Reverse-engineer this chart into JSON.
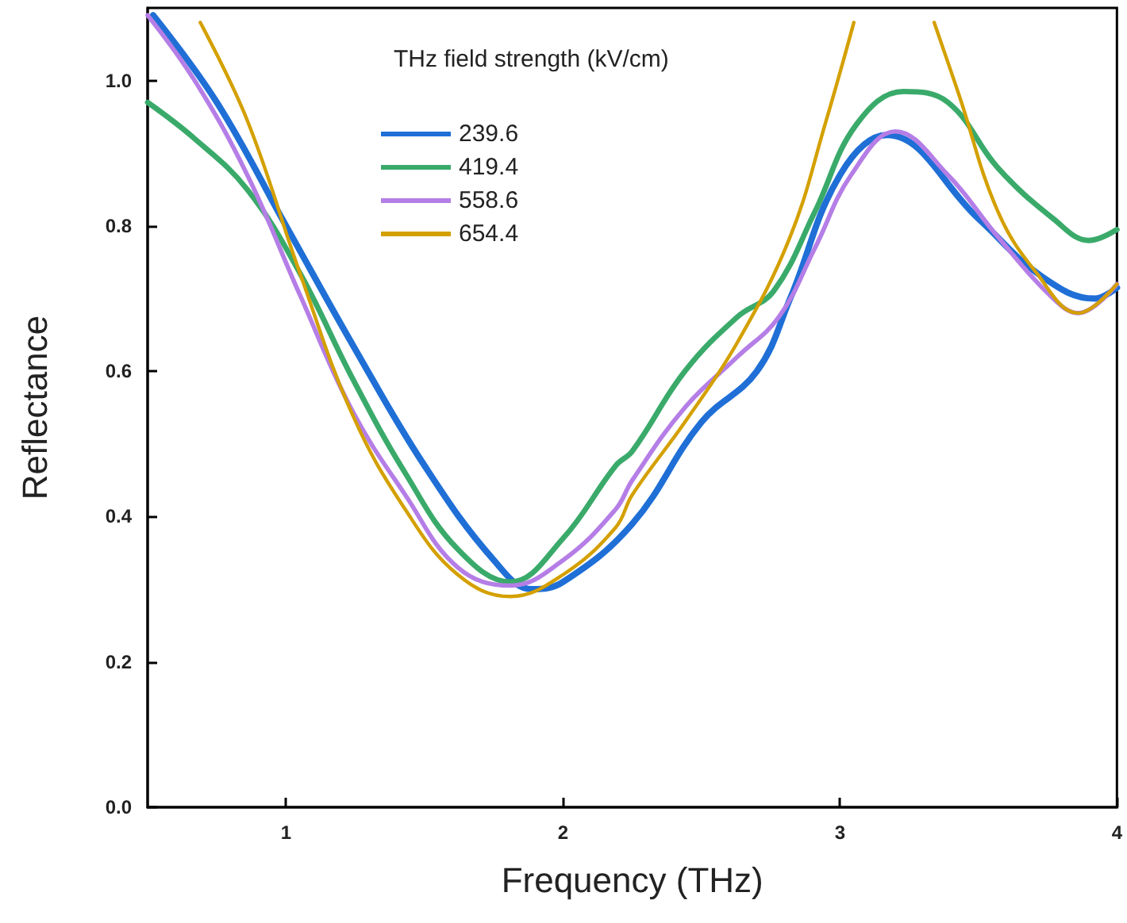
{
  "chart_data": {
    "type": "line",
    "xlabel": "Frequency (THz)",
    "ylabel": "Reflectance",
    "legend_title": "THz field strength (kV/cm)",
    "legend": "top",
    "grid": false,
    "marker": "none",
    "line_style": "solid",
    "xlim": [
      0.5,
      4
    ],
    "xticks": [
      1,
      2,
      3,
      4
    ],
    "ylim": [
      0,
      1.1
    ],
    "yticks": [
      {
        "value": 0,
        "label": "0.0"
      },
      {
        "value": 0.2,
        "label": "0.2"
      },
      {
        "value": 0.4,
        "label": "0.4"
      },
      {
        "value": 0.6,
        "label": "0.6"
      },
      {
        "value": 0.8,
        "label": "0.8"
      },
      {
        "value": 1.0,
        "label": "1.0"
      }
    ],
    "series": [
      {
        "name": "239.6",
        "color": "#1f6fd6",
        "x": [
          0.52,
          0.75,
          1.0,
          1.25,
          1.5,
          1.75,
          1.89,
          2.0,
          2.25,
          2.5,
          2.7,
          2.82,
          3.0,
          3.17,
          3.5,
          3.73,
          3.92,
          4.0
        ],
        "values": [
          1.09,
          0.97,
          0.8,
          0.63,
          0.47,
          0.34,
          0.3,
          0.31,
          0.39,
          0.53,
          0.6,
          0.7,
          0.87,
          0.925,
          0.81,
          0.73,
          0.7,
          0.715
        ]
      },
      {
        "name": "419.4",
        "color": "#3aaa6a",
        "x": [
          0.5,
          0.67,
          0.86,
          1.05,
          1.24,
          1.43,
          1.62,
          1.81,
          2.0,
          2.19,
          2.25,
          2.44,
          2.63,
          2.76,
          2.91,
          3.06,
          3.23,
          3.39,
          3.57,
          3.77,
          3.9,
          4.0
        ],
        "values": [
          0.97,
          0.92,
          0.85,
          0.735,
          0.59,
          0.46,
          0.355,
          0.31,
          0.37,
          0.47,
          0.49,
          0.6,
          0.675,
          0.71,
          0.82,
          0.94,
          0.985,
          0.97,
          0.88,
          0.81,
          0.78,
          0.795
        ]
      },
      {
        "name": "558.6",
        "color": "#b57ee6",
        "x": [
          0.5,
          0.67,
          0.86,
          1.05,
          1.24,
          1.43,
          1.62,
          1.81,
          2.0,
          2.19,
          2.25,
          2.44,
          2.63,
          2.78,
          2.91,
          3.04,
          3.2,
          3.39,
          3.57,
          3.77,
          3.86,
          4.0
        ],
        "values": [
          1.09,
          1.0,
          0.87,
          0.705,
          0.545,
          0.43,
          0.33,
          0.305,
          0.34,
          0.41,
          0.45,
          0.55,
          0.62,
          0.675,
          0.77,
          0.87,
          0.93,
          0.87,
          0.785,
          0.7,
          0.68,
          0.72
        ]
      },
      {
        "name": "654.4",
        "color": "#d4a000",
        "x": [
          0.69,
          0.86,
          1.05,
          1.24,
          1.43,
          1.62,
          1.81,
          2.0,
          2.19,
          2.25,
          2.44,
          2.63,
          2.82,
          2.95,
          3.05,
          3.19,
          3.34,
          3.43,
          3.57,
          3.71,
          3.86,
          4.0
        ],
        "values": [
          1.08,
          0.945,
          0.735,
          0.54,
          0.41,
          0.32,
          0.29,
          0.32,
          0.385,
          0.43,
          0.53,
          0.64,
          0.785,
          0.945,
          1.08,
          null,
          1.08,
          0.98,
          0.82,
          0.735,
          0.68,
          0.72
        ]
      }
    ]
  }
}
